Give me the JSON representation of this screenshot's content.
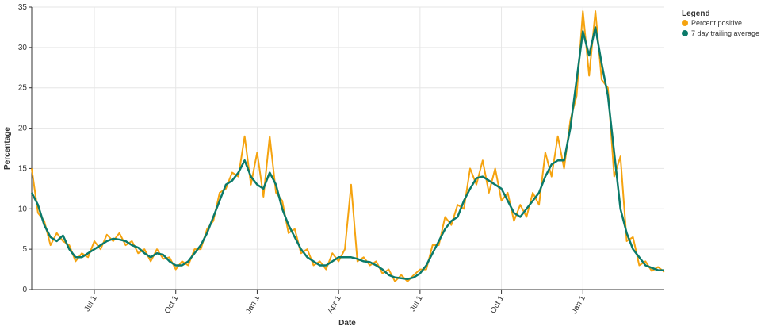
{
  "chart_data": {
    "type": "line",
    "x_label": "Date",
    "y_label": "Percentage",
    "legend_title": "Legend",
    "legend": "right-top",
    "grid": true,
    "categories": [
      null,
      null,
      null,
      null,
      null,
      null,
      null,
      null,
      null,
      null,
      "Jul 1",
      null,
      null,
      null,
      null,
      null,
      null,
      null,
      null,
      null,
      null,
      null,
      null,
      "Oct 1",
      null,
      null,
      null,
      null,
      null,
      null,
      null,
      null,
      null,
      null,
      null,
      null,
      "Jan 1",
      null,
      null,
      null,
      null,
      null,
      null,
      null,
      null,
      null,
      null,
      null,
      null,
      "Apr 1",
      null,
      null,
      null,
      null,
      null,
      null,
      null,
      null,
      null,
      null,
      null,
      null,
      "Jul 1",
      null,
      null,
      null,
      null,
      null,
      null,
      null,
      null,
      null,
      null,
      null,
      null,
      "Oct 1",
      null,
      null,
      null,
      null,
      null,
      null,
      null,
      null,
      null,
      null,
      null,
      null,
      "Jan 1",
      null,
      null,
      null,
      null,
      null,
      null,
      null,
      null,
      null,
      null,
      null,
      null,
      null
    ],
    "ylim": [
      0,
      35
    ],
    "yticks": [
      0,
      5,
      10,
      15,
      20,
      25,
      30,
      35
    ],
    "series": [
      {
        "name": "Percent positive",
        "color": "#f5a30f",
        "values": [
          15,
          9.5,
          8.5,
          5.5,
          7,
          6,
          5.5,
          3.5,
          4.5,
          4,
          6,
          5,
          6.8,
          6,
          7,
          5.5,
          6,
          4.5,
          5,
          3.5,
          5,
          3.8,
          4,
          2.5,
          3.5,
          3,
          5,
          5,
          7.5,
          8.5,
          12,
          12.5,
          14.5,
          14,
          19,
          13,
          17,
          11.5,
          19,
          12,
          11,
          7,
          7.5,
          4.5,
          5,
          3,
          3.5,
          2.5,
          4.5,
          3.5,
          5,
          13,
          3.5,
          4,
          3,
          3.5,
          2,
          2.5,
          1,
          1.8,
          1,
          1.8,
          2.5,
          2.5,
          5.5,
          5.5,
          9,
          8,
          10.5,
          10,
          15,
          13,
          16,
          12,
          15,
          11,
          12,
          8.5,
          10.5,
          9,
          12,
          10.5,
          17,
          14,
          19,
          15,
          21,
          24,
          34.5,
          26.5,
          34.5,
          26,
          25,
          14,
          16.5,
          6,
          6.5,
          3,
          3.5,
          2.3,
          2.8,
          2.2
        ]
      },
      {
        "name": "7 day trailing average",
        "color": "#0b7a6a",
        "values": [
          12,
          10.5,
          8,
          6.5,
          6,
          6.7,
          5,
          4,
          4,
          4.5,
          5,
          5.5,
          6,
          6.3,
          6.2,
          6,
          5.5,
          5.2,
          4.5,
          4,
          4.5,
          4.3,
          3.5,
          3,
          3,
          3.5,
          4.5,
          5.5,
          7,
          9,
          11,
          13,
          13.5,
          14.5,
          16,
          14,
          13,
          12.5,
          14.5,
          13,
          10,
          8,
          6.5,
          5,
          4,
          3.5,
          3,
          3,
          3.5,
          4,
          4,
          4,
          3.8,
          3.5,
          3.4,
          3,
          2.5,
          1.8,
          1.5,
          1.4,
          1.3,
          1.5,
          2,
          3,
          4.5,
          6,
          7.5,
          8.5,
          9,
          11,
          12.5,
          13.8,
          14,
          13.5,
          13,
          12.5,
          11,
          9.5,
          9,
          10,
          11,
          12,
          14,
          15.5,
          16,
          16,
          20,
          26,
          32,
          29,
          32.5,
          28,
          24,
          17,
          10,
          7,
          5,
          4,
          3,
          2.7,
          2.4,
          2.4
        ]
      }
    ]
  }
}
